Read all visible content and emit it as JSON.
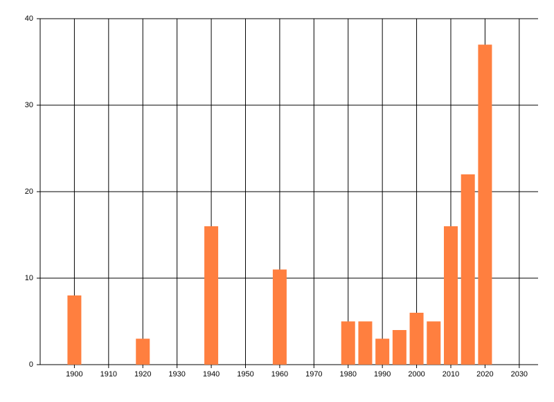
{
  "chart_data": {
    "type": "bar",
    "x": [
      1900,
      1920,
      1940,
      1960,
      1980,
      1985,
      1990,
      1995,
      2000,
      2005,
      2010,
      2015,
      2020
    ],
    "values": [
      8,
      3,
      16,
      11,
      5,
      5,
      3,
      4,
      6,
      5,
      16,
      22,
      37
    ],
    "color": "#ff7f3f",
    "xlim": [
      1890,
      2035.5
    ],
    "xticks": [
      1900,
      1910,
      1920,
      1930,
      1940,
      1950,
      1960,
      1970,
      1980,
      1990,
      2000,
      2010,
      2020,
      2030
    ],
    "ylim": [
      0,
      40
    ],
    "yticks": [
      0,
      10,
      20,
      30,
      40
    ],
    "grid": true
  }
}
